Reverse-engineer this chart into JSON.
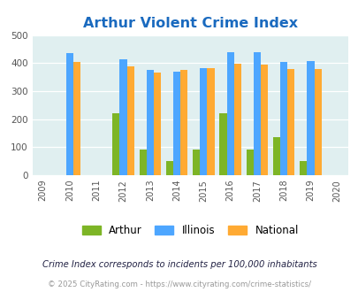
{
  "title": "Arthur Violent Crime Index",
  "years": [
    2009,
    2010,
    2011,
    2012,
    2013,
    2014,
    2015,
    2016,
    2017,
    2018,
    2019,
    2020
  ],
  "data_years": [
    2010,
    2012,
    2013,
    2014,
    2015,
    2016,
    2017,
    2018,
    2019
  ],
  "arthur": [
    0,
    220,
    90,
    50,
    90,
    220,
    90,
    135,
    50
  ],
  "illinois": [
    435,
    415,
    375,
    370,
    383,
    438,
    438,
    405,
    408
  ],
  "national": [
    405,
    388,
    367,
    376,
    383,
    397,
    394,
    380,
    379
  ],
  "arthur_color": "#7db526",
  "illinois_color": "#4da6ff",
  "national_color": "#ffaa33",
  "bg_color": "#e0eff0",
  "ylim": [
    0,
    500
  ],
  "yticks": [
    0,
    100,
    200,
    300,
    400,
    500
  ],
  "bar_width": 0.27,
  "legend_labels": [
    "Arthur",
    "Illinois",
    "National"
  ],
  "footnote1": "Crime Index corresponds to incidents per 100,000 inhabitants",
  "footnote2": "© 2025 CityRating.com - https://www.cityrating.com/crime-statistics/",
  "title_color": "#1a6abf",
  "footnote1_color": "#222244",
  "footnote2_color": "#999999"
}
